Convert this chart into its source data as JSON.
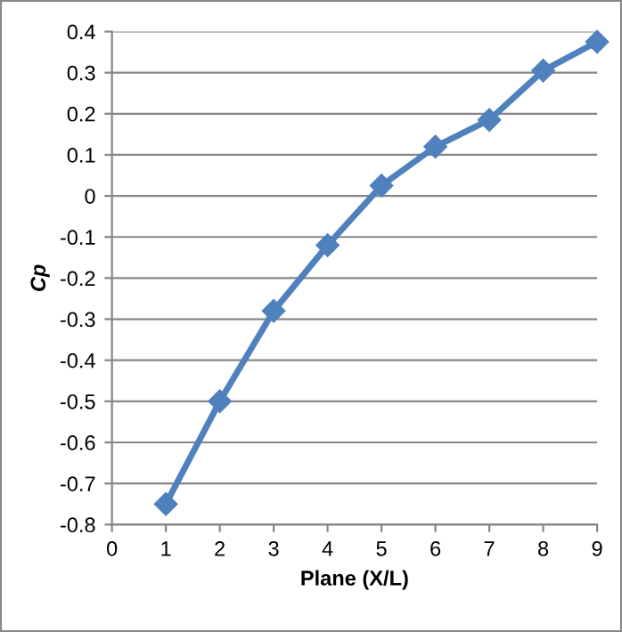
{
  "chart_data": {
    "type": "line",
    "xlabel": "Plane (X/L)",
    "ylabel": "Cp",
    "x": [
      1,
      2,
      3,
      4,
      5,
      6,
      7,
      8,
      9
    ],
    "series": [
      {
        "color": "#4f81bd",
        "values": [
          -0.75,
          -0.5,
          -0.28,
          -0.12,
          0.025,
          0.12,
          0.185,
          0.305,
          0.375
        ]
      }
    ],
    "xlim": [
      0,
      9
    ],
    "xticks": [
      0,
      1,
      2,
      3,
      4,
      5,
      6,
      7,
      8,
      9
    ],
    "ylim": [
      -0.8,
      0.4
    ],
    "yticks": [
      -0.8,
      -0.7,
      -0.6,
      -0.5,
      -0.4,
      -0.3,
      -0.2,
      -0.1,
      0,
      0.1,
      0.2,
      0.3,
      0.4
    ],
    "grid": "y",
    "marker": "diamond",
    "line_style": "solid",
    "legend": false
  }
}
